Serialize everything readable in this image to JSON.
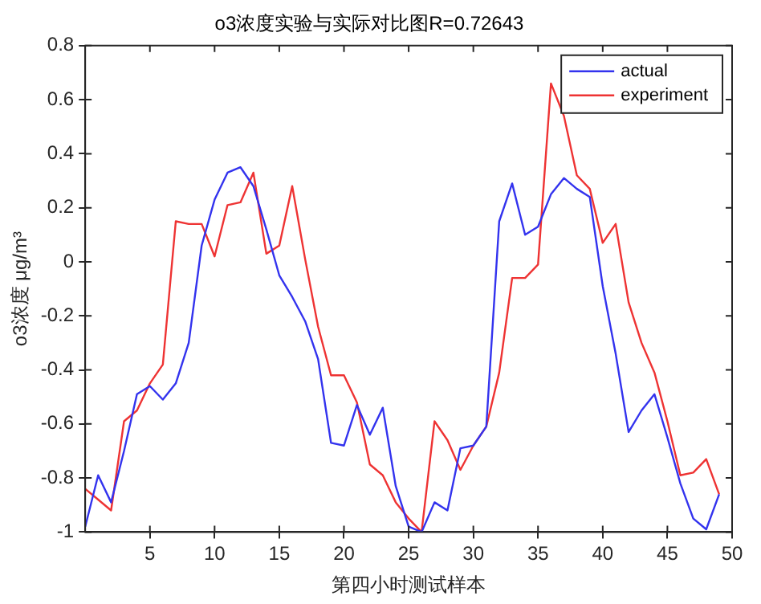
{
  "chart_data": {
    "type": "line",
    "title": "o3浓度实验与实际对比图R=0.72643",
    "xlabel": "第四小时测试样本",
    "ylabel": "o3浓度 μg/m³",
    "x": [
      0,
      1,
      2,
      3,
      4,
      5,
      6,
      7,
      8,
      9,
      10,
      11,
      12,
      13,
      14,
      15,
      16,
      17,
      18,
      19,
      20,
      21,
      22,
      23,
      24,
      25,
      26,
      27,
      28,
      29,
      30,
      31,
      32,
      33,
      34,
      35,
      36,
      37,
      38,
      39,
      40,
      41,
      42,
      43,
      44,
      45,
      46,
      47,
      48,
      49
    ],
    "series": [
      {
        "name": "actual",
        "color": "#3333ee",
        "values": [
          -0.98,
          -0.79,
          -0.89,
          -0.7,
          -0.49,
          -0.46,
          -0.51,
          -0.45,
          -0.3,
          0.06,
          0.23,
          0.33,
          0.35,
          0.28,
          0.12,
          -0.05,
          -0.13,
          -0.22,
          -0.36,
          -0.67,
          -0.68,
          -0.53,
          -0.64,
          -0.54,
          -0.83,
          -0.98,
          -1.0,
          -0.89,
          -0.92,
          -0.69,
          -0.68,
          -0.61,
          0.15,
          0.29,
          0.1,
          0.13,
          0.25,
          0.31,
          0.27,
          0.24,
          -0.09,
          -0.34,
          -0.63,
          -0.55,
          -0.49,
          -0.65,
          -0.82,
          -0.95,
          -0.99,
          -0.86
        ]
      },
      {
        "name": "experiment",
        "color": "#ee3333",
        "values": [
          -0.84,
          -0.88,
          -0.92,
          -0.59,
          -0.55,
          -0.45,
          -0.38,
          0.15,
          0.14,
          0.14,
          0.02,
          0.21,
          0.22,
          0.33,
          0.03,
          0.06,
          0.28,
          0.01,
          -0.24,
          -0.42,
          -0.42,
          -0.52,
          -0.75,
          -0.79,
          -0.89,
          -0.95,
          -1.0,
          -0.59,
          -0.66,
          -0.77,
          -0.68,
          -0.61,
          -0.41,
          -0.06,
          -0.06,
          -0.01,
          0.66,
          0.54,
          0.32,
          0.27,
          0.07,
          0.14,
          -0.15,
          -0.3,
          -0.41,
          -0.59,
          -0.79,
          -0.78,
          -0.73,
          -0.86
        ]
      }
    ],
    "xlim": [
      0,
      50
    ],
    "xticks": [
      5,
      10,
      15,
      20,
      25,
      30,
      35,
      40,
      45,
      50
    ],
    "ylim": [
      -1,
      0.8
    ],
    "yticks": [
      -1,
      -0.8,
      -0.6,
      -0.4,
      -0.2,
      0,
      0.2,
      0.4,
      0.6,
      0.8
    ],
    "grid": false,
    "legend": "top right",
    "marker": "none",
    "line_style": "solid"
  }
}
